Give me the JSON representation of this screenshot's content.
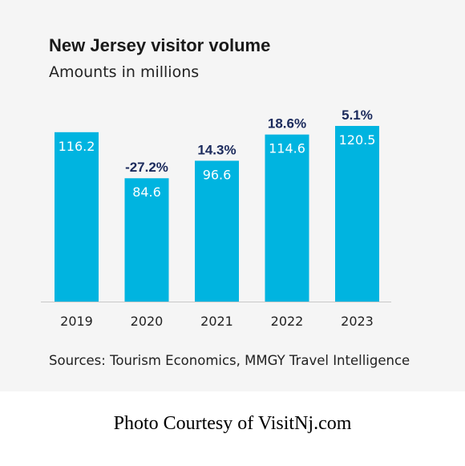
{
  "chart_data": {
    "type": "bar",
    "title": "New Jersey visitor volume",
    "subtitle": "Amounts in millions",
    "categories": [
      "2019",
      "2020",
      "2021",
      "2022",
      "2023"
    ],
    "values": [
      116.2,
      84.6,
      96.6,
      114.6,
      120.5
    ],
    "value_labels": [
      "116.2",
      "84.6",
      "96.6",
      "114.6",
      "120.5"
    ],
    "pct_change_labels": [
      "",
      "-27.2%",
      "14.3%",
      "18.6%",
      "5.1%"
    ],
    "source": "Sources: Tourism Economics, MMGY Travel Intelligence",
    "ylim": [
      0,
      120.5
    ],
    "grid": false,
    "colors": {
      "bar": "#00b4e0",
      "pct_label": "#1b2a5c",
      "axis": "#c8c8c8"
    }
  },
  "caption": "Photo Courtesy of VisitNj.com"
}
